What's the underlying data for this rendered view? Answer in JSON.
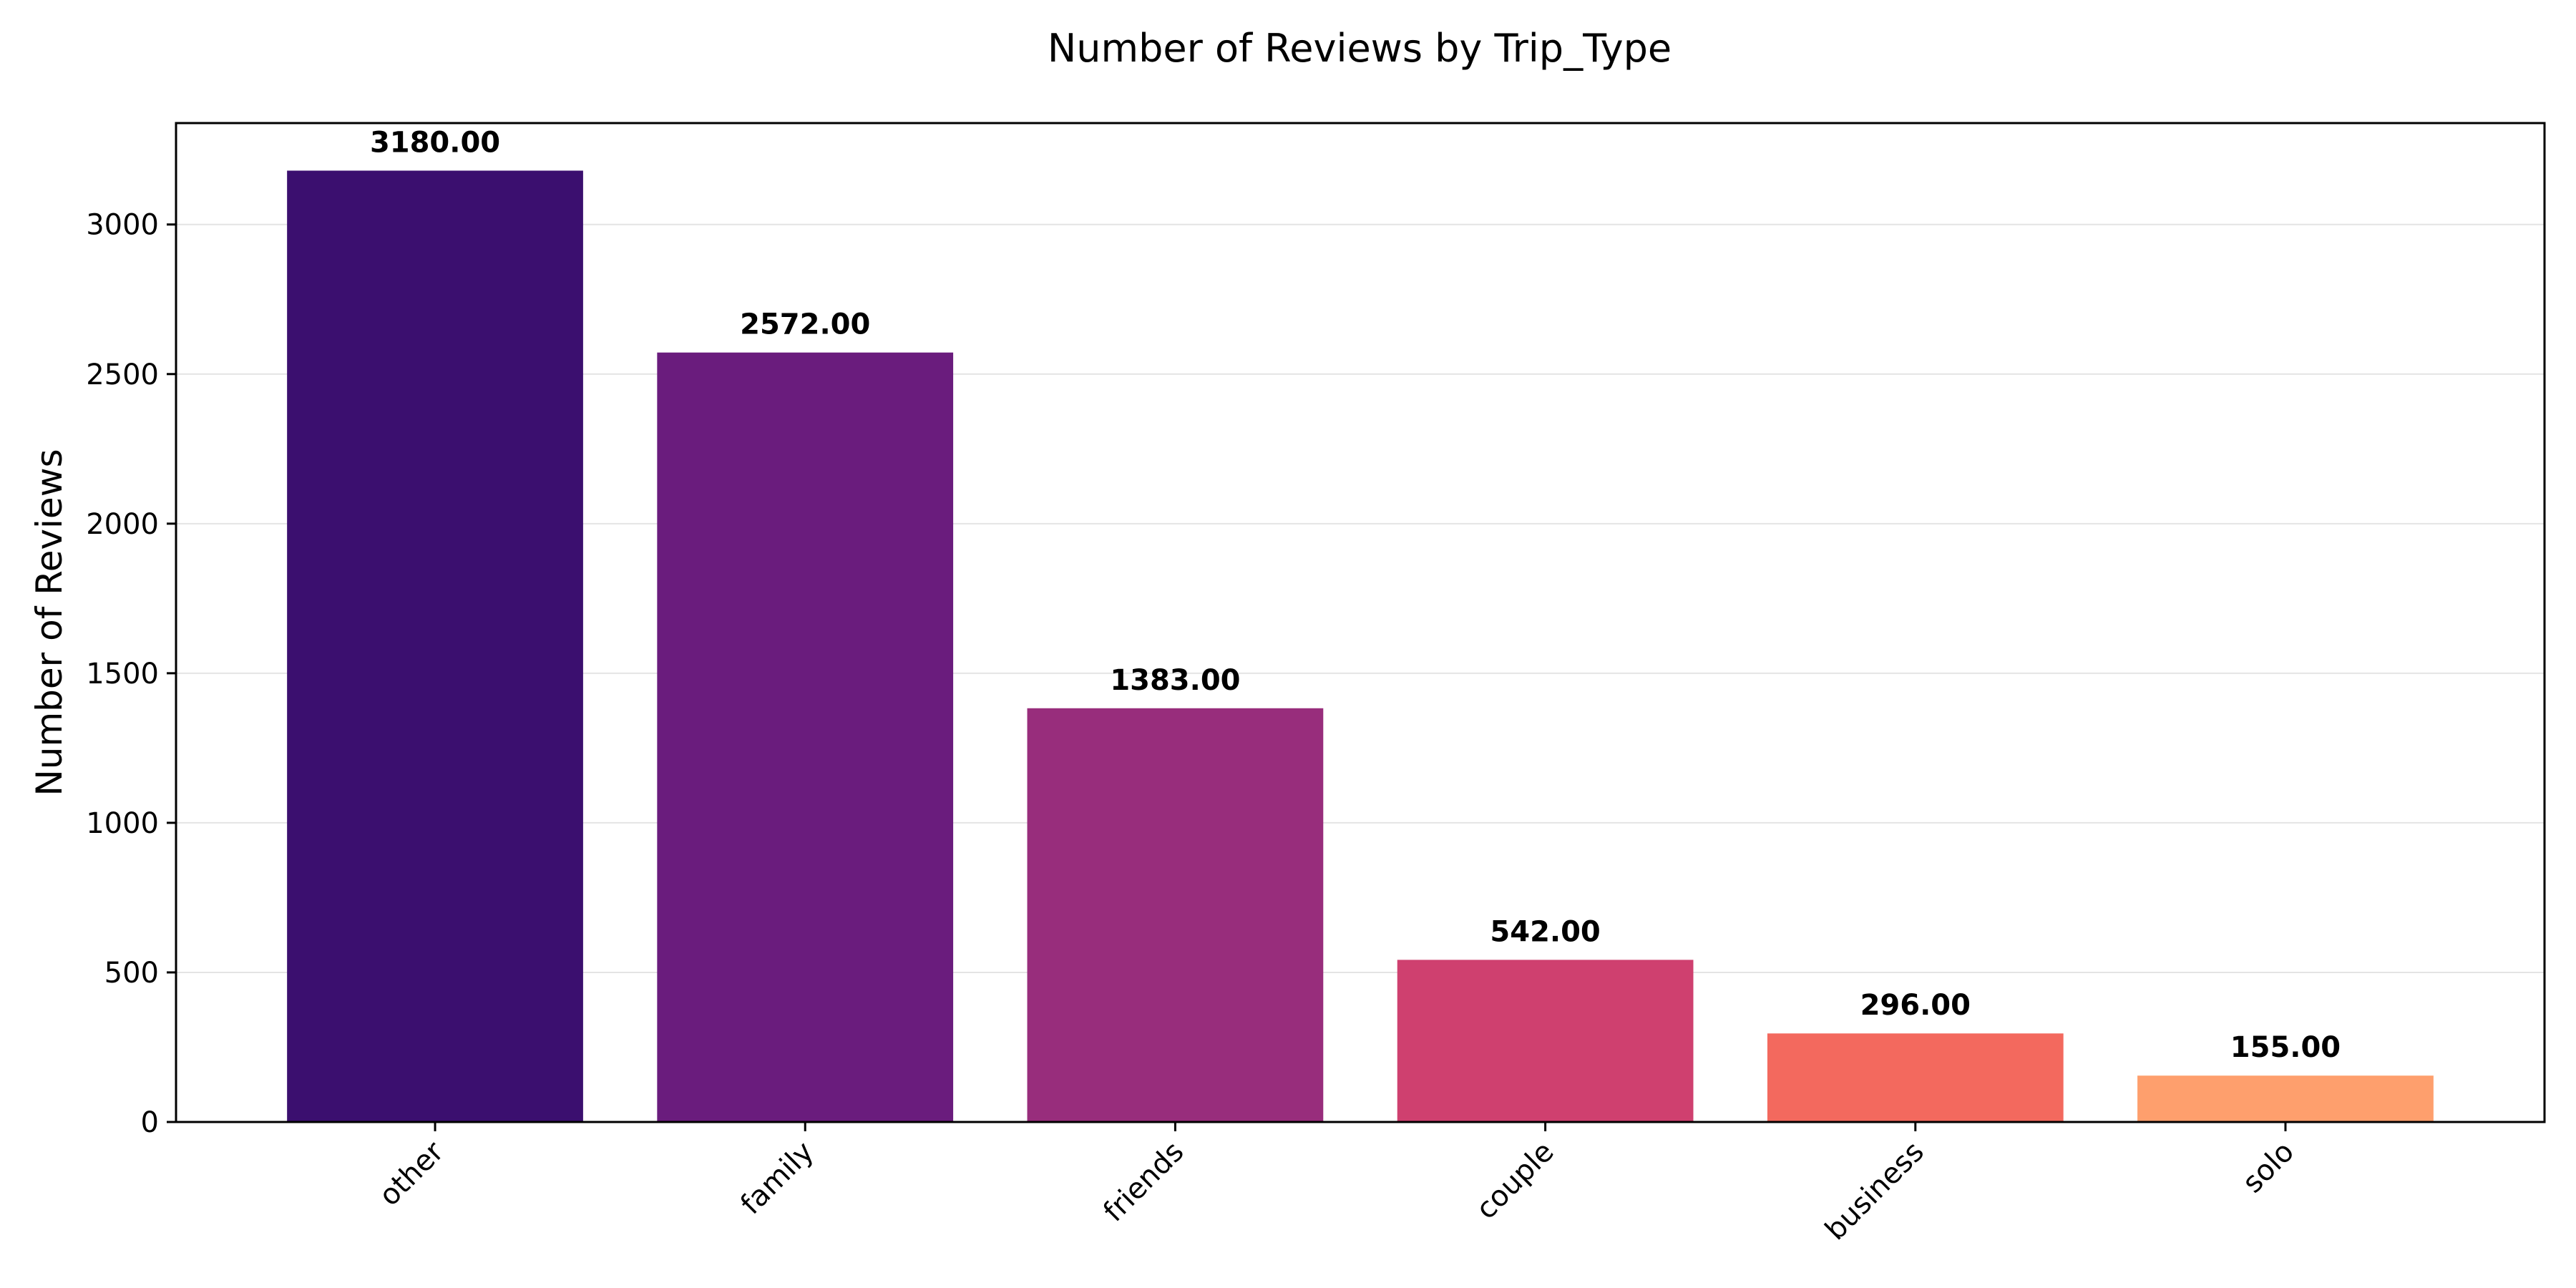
{
  "chart_data": {
    "type": "bar",
    "title": "Number of Reviews by Trip_Type",
    "xlabel": "",
    "ylabel": "Number of Reviews",
    "categories": [
      "other",
      "family",
      "friends",
      "couple",
      "business",
      "solo"
    ],
    "values": [
      3180,
      2572,
      1383,
      542,
      296,
      155
    ],
    "value_labels": [
      "3180.00",
      "2572.00",
      "1383.00",
      "542.00",
      "296.00",
      "155.00"
    ],
    "bar_colors": [
      "#3b0f6f",
      "#6a1c7d",
      "#982d7c",
      "#cf406f",
      "#f3695e",
      "#fe9f6d"
    ],
    "ylim": [
      0,
      3339
    ],
    "yticks": [
      0,
      500,
      1000,
      1500,
      2000,
      2500,
      3000
    ],
    "ytick_labels": [
      "0",
      "500",
      "1000",
      "1500",
      "2000",
      "2500",
      "3000"
    ],
    "grid": "y",
    "xtick_rotation": -45
  }
}
